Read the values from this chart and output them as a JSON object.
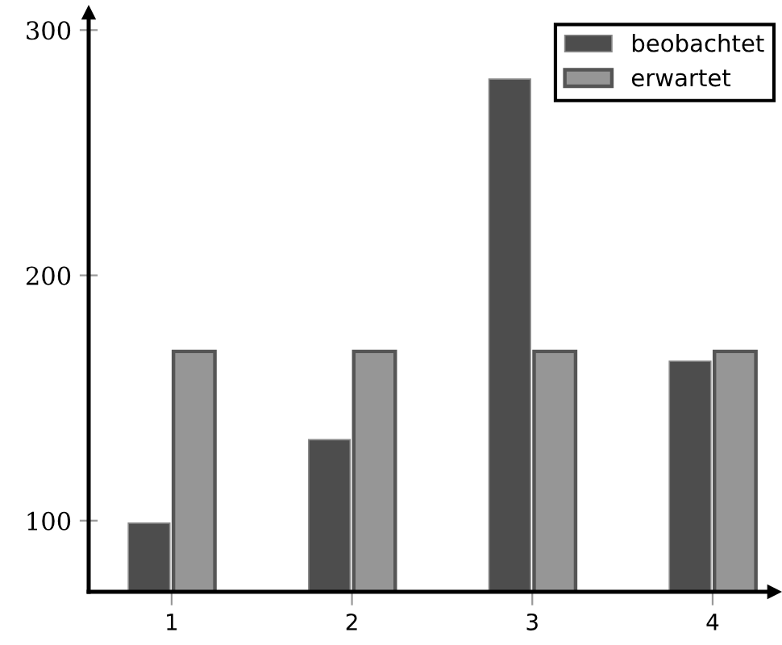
{
  "chart_data": {
    "type": "bar",
    "categories": [
      "1",
      "2",
      "3",
      "4"
    ],
    "series": [
      {
        "name": "beobachtet",
        "color": "#4d4d4d",
        "values": [
          99,
          133,
          280,
          165
        ]
      },
      {
        "name": "erwartet",
        "color": "#969696",
        "values": [
          169,
          169,
          169,
          169
        ]
      }
    ],
    "ylim": [
      71,
      307
    ],
    "yticks": [
      100,
      200,
      300
    ],
    "grid": false,
    "legend": "top right"
  }
}
